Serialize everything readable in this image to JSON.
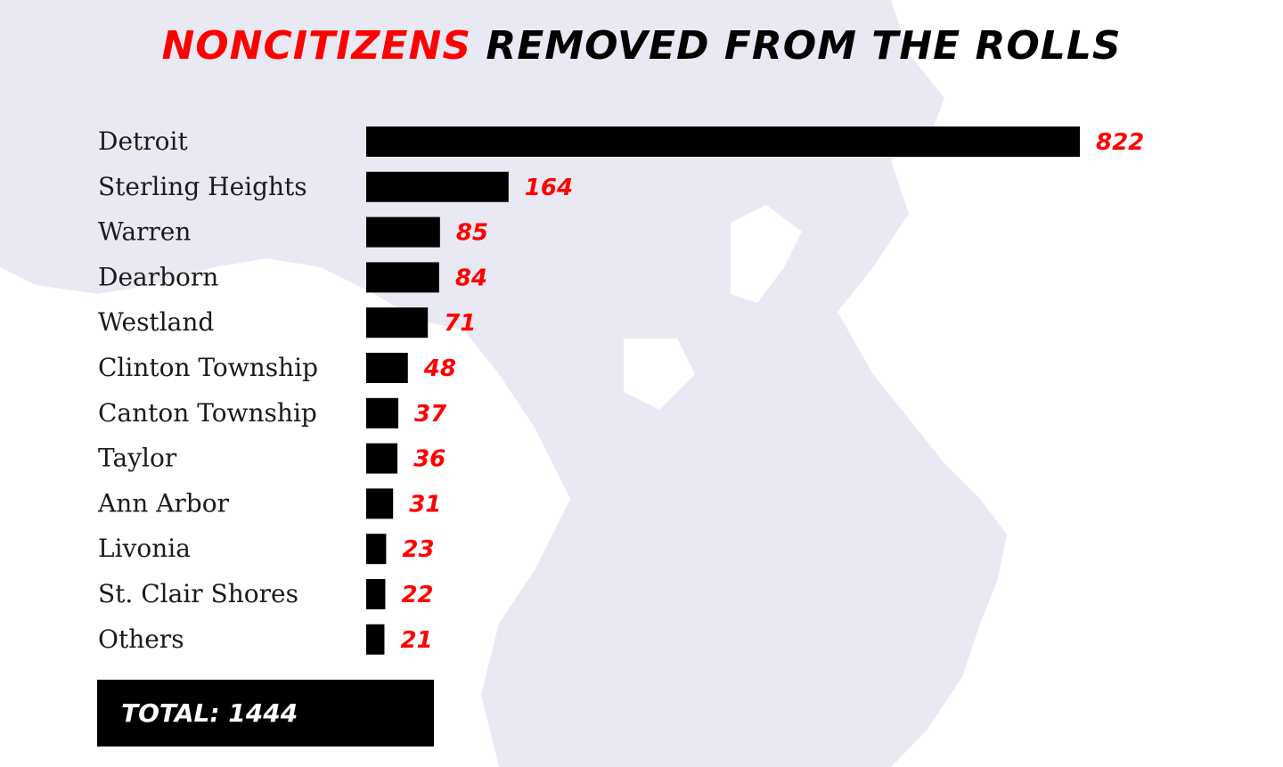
{
  "title": {
    "highlight": "NONCITIZENS",
    "rest": "REMOVED FROM THE ROLLS"
  },
  "colors": {
    "bar": "#000000",
    "value_label": "#ff0000",
    "title_highlight": "#ff0000",
    "map": "#e9e9f4"
  },
  "total": {
    "label": "TOTAL: 1444"
  },
  "chart_data": {
    "type": "bar",
    "orientation": "horizontal",
    "title": "NONCITIZENS REMOVED FROM THE ROLLS",
    "categories": [
      "Detroit",
      "Sterling Heights",
      "Warren",
      "Dearborn",
      "Westland",
      "Clinton Township",
      "Canton Township",
      "Taylor",
      "Ann Arbor",
      "Livonia",
      "St. Clair Shores",
      "Others"
    ],
    "values": [
      822,
      164,
      85,
      84,
      71,
      48,
      37,
      36,
      31,
      23,
      22,
      21
    ],
    "xlim": [
      0,
      822
    ],
    "grid": false,
    "legend": "none"
  }
}
